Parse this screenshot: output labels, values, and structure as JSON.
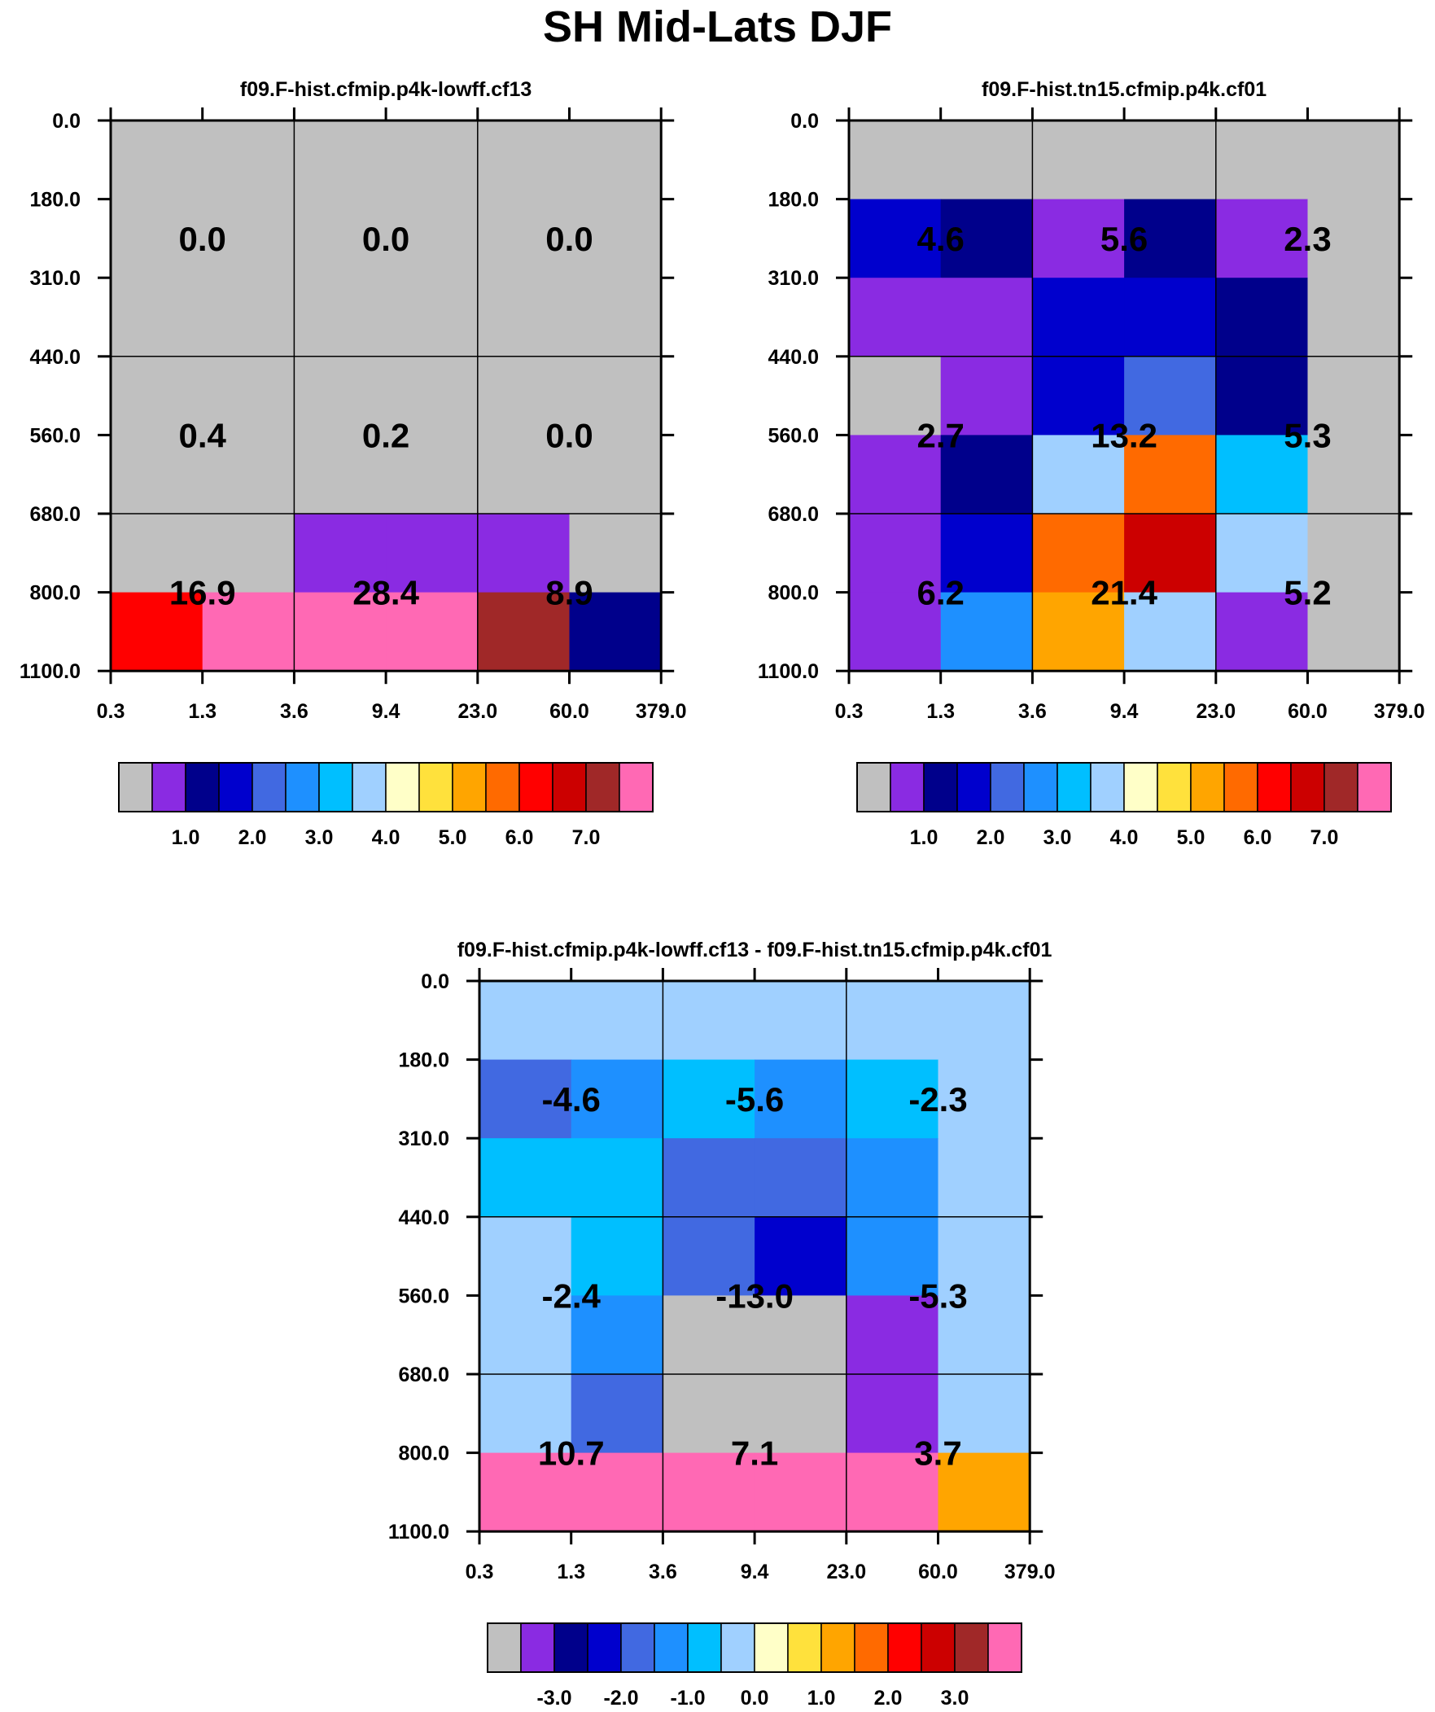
{
  "title": "SH Mid-Lats DJF",
  "colors": [
    "#c0c0c0",
    "#8a2be2",
    "#00008b",
    "#0000cd",
    "#4169e1",
    "#1e90ff",
    "#00bfff",
    "#a0d0ff",
    "#ffffc8",
    "#ffe13c",
    "#ffa500",
    "#ff6a00",
    "#ff0000",
    "#cc0000",
    "#a02828",
    "#ff69b4"
  ],
  "chart_data": [
    {
      "type": "heatmap",
      "title": "f09.F-hist.cfmip.p4k-lowff.cf13",
      "x_ticks": [
        "0.3",
        "1.3",
        "3.6",
        "9.4",
        "23.0",
        "60.0",
        "379.0"
      ],
      "y_ticks": [
        "0.0",
        "180.0",
        "310.0",
        "440.0",
        "560.0",
        "680.0",
        "800.0",
        "1100.0"
      ],
      "cells": [
        [
          0,
          0,
          0,
          0,
          0,
          0
        ],
        [
          0,
          0,
          0,
          0,
          0,
          0
        ],
        [
          0,
          0,
          0,
          0,
          0,
          0
        ],
        [
          0,
          0,
          0,
          0,
          0,
          0
        ],
        [
          0,
          0,
          0,
          0,
          0,
          0
        ],
        [
          0,
          0,
          1,
          1,
          1,
          0
        ],
        [
          12,
          15,
          15,
          15,
          14,
          2
        ]
      ],
      "block_values": [
        [
          "0.0",
          "0.0",
          "0.0"
        ],
        [
          "0.4",
          "0.2",
          "0.0"
        ],
        [
          "16.9",
          "28.4",
          "8.9"
        ]
      ],
      "colorbar_labels": [
        "1.0",
        "2.0",
        "3.0",
        "4.0",
        "5.0",
        "6.0",
        "7.0"
      ]
    },
    {
      "type": "heatmap",
      "title": "f09.F-hist.tn15.cfmip.p4k.cf01",
      "x_ticks": [
        "0.3",
        "1.3",
        "3.6",
        "9.4",
        "23.0",
        "60.0",
        "379.0"
      ],
      "y_ticks": [
        "0.0",
        "180.0",
        "310.0",
        "440.0",
        "560.0",
        "680.0",
        "800.0",
        "1100.0"
      ],
      "cells": [
        [
          0,
          0,
          0,
          0,
          0,
          0
        ],
        [
          3,
          2,
          1,
          2,
          1,
          0
        ],
        [
          1,
          1,
          3,
          3,
          2,
          0
        ],
        [
          0,
          1,
          3,
          4,
          2,
          0
        ],
        [
          1,
          2,
          7,
          11,
          6,
          0
        ],
        [
          1,
          3,
          11,
          13,
          7,
          0
        ],
        [
          1,
          5,
          10,
          7,
          1,
          0
        ]
      ],
      "block_values": [
        [
          "4.6",
          "5.6",
          "2.3"
        ],
        [
          "2.7",
          "13.2",
          "5.3"
        ],
        [
          "6.2",
          "21.4",
          "5.2"
        ]
      ],
      "colorbar_labels": [
        "1.0",
        "2.0",
        "3.0",
        "4.0",
        "5.0",
        "6.0",
        "7.0"
      ]
    },
    {
      "type": "heatmap",
      "title": "f09.F-hist.cfmip.p4k-lowff.cf13 - f09.F-hist.tn15.cfmip.p4k.cf01",
      "x_ticks": [
        "0.3",
        "1.3",
        "3.6",
        "9.4",
        "23.0",
        "60.0",
        "379.0"
      ],
      "y_ticks": [
        "0.0",
        "180.0",
        "310.0",
        "440.0",
        "560.0",
        "680.0",
        "800.0",
        "1100.0"
      ],
      "cells": [
        [
          7,
          7,
          7,
          7,
          7,
          7
        ],
        [
          4,
          5,
          6,
          5,
          6,
          7
        ],
        [
          6,
          6,
          4,
          4,
          5,
          7
        ],
        [
          7,
          6,
          4,
          3,
          5,
          7
        ],
        [
          7,
          5,
          0,
          0,
          1,
          7
        ],
        [
          7,
          4,
          0,
          0,
          1,
          7
        ],
        [
          15,
          15,
          15,
          15,
          15,
          10
        ]
      ],
      "block_values": [
        [
          "-4.6",
          "-5.6",
          "-2.3"
        ],
        [
          "-2.4",
          "-13.0",
          "-5.3"
        ],
        [
          "10.7",
          "7.1",
          "3.7"
        ]
      ],
      "colorbar_labels": [
        "-3.0",
        "-2.0",
        "-1.0",
        "0.0",
        "1.0",
        "2.0",
        "3.0"
      ]
    }
  ]
}
